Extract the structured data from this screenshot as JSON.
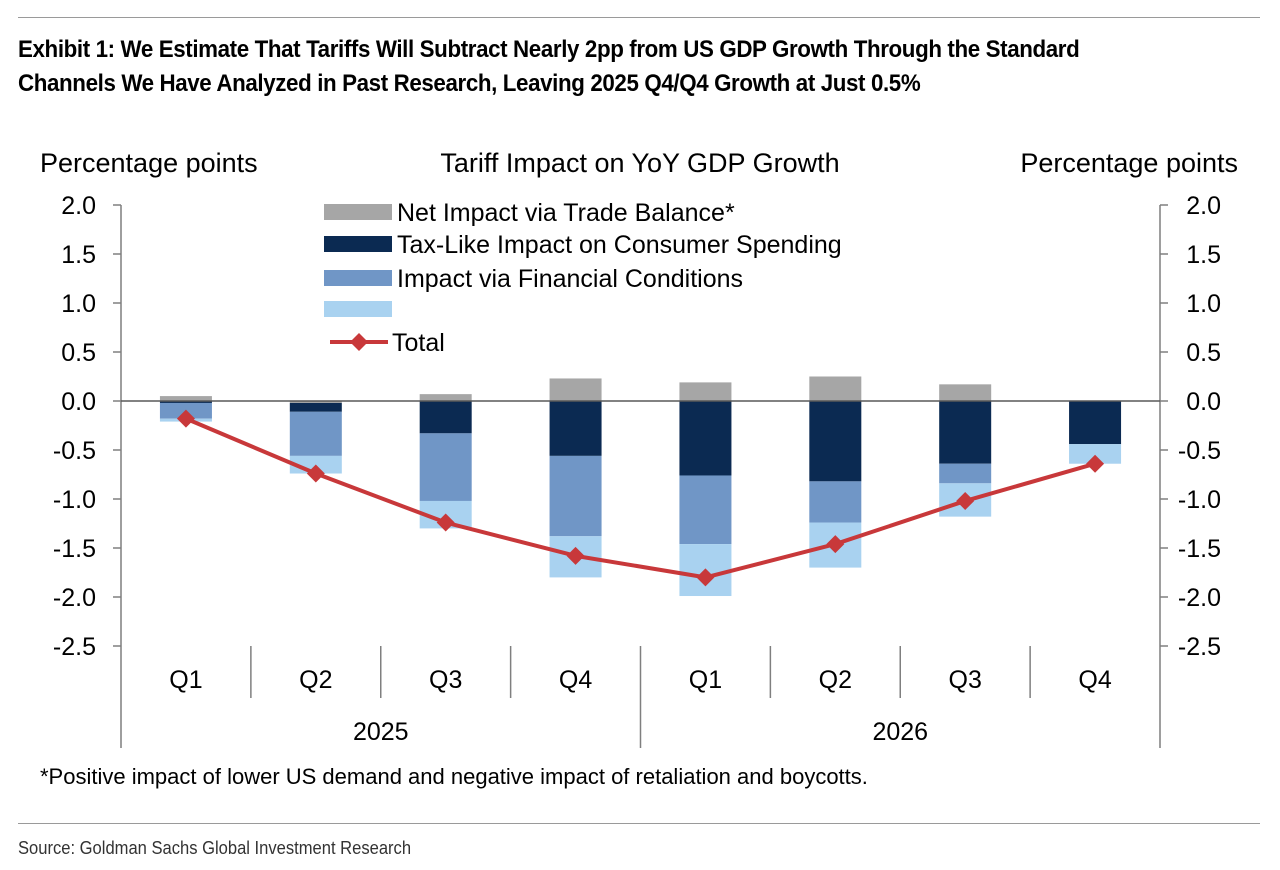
{
  "title": "Exhibit 1: We Estimate That Tariffs Will Subtract Nearly 2pp from US GDP Growth Through the Standard Channels We Have Analyzed in Past Research, Leaving 2025 Q4/Q4 Growth at Just 0.5%",
  "title_lines": [
    "Exhibit 1: We Estimate That Tariffs Will Subtract Nearly 2pp from US GDP Growth Through the Standard",
    "Channels We Have Analyzed in Past Research, Leaving 2025 Q4/Q4 Growth at Just 0.5%"
  ],
  "source": "Source: Goldman Sachs Global Investment Research",
  "chart_data": {
    "type": "bar",
    "stacked": true,
    "title": "Tariff Impact on YoY GDP Growth",
    "ylabel_left": "Percentage points",
    "ylabel_right": "Percentage points",
    "ylim": [
      -2.5,
      2.0
    ],
    "yticks": [
      "2.0",
      "1.5",
      "1.0",
      "0.5",
      "0.0",
      "-0.5",
      "-1.0",
      "-1.5",
      "-2.0",
      "-2.5"
    ],
    "categories": [
      "Q1",
      "Q2",
      "Q3",
      "Q4",
      "Q1",
      "Q2",
      "Q3",
      "Q4"
    ],
    "year_groups": [
      {
        "label": "2025",
        "quarters": 4
      },
      {
        "label": "2026",
        "quarters": 4
      }
    ],
    "series": [
      {
        "name": "Net Impact via Trade Balance*",
        "color": "#a6a6a6",
        "values": [
          0.05,
          -0.02,
          0.07,
          0.23,
          0.19,
          0.25,
          0.17,
          0.0
        ]
      },
      {
        "name": "Tax-Like Impact on Consumer Spending",
        "color": "#0b2a52",
        "values": [
          -0.02,
          -0.09,
          -0.33,
          -0.56,
          -0.76,
          -0.82,
          -0.64,
          -0.44
        ]
      },
      {
        "name": "Impact via Financial Conditions",
        "color": "#7096c6",
        "values": [
          -0.16,
          -0.45,
          -0.69,
          -0.82,
          -0.7,
          -0.42,
          -0.2,
          0.0
        ]
      },
      {
        "name": "",
        "color": "#a9d2f0",
        "values": [
          -0.03,
          -0.18,
          -0.28,
          -0.42,
          -0.53,
          -0.46,
          -0.34,
          -0.2
        ]
      }
    ],
    "total": {
      "name": "Total",
      "color": "#c8383a",
      "values": [
        -0.18,
        -0.74,
        -1.24,
        -1.58,
        -1.8,
        -1.46,
        -1.02,
        -0.64
      ]
    },
    "footnote": "*Positive impact of lower US demand and negative impact of retaliation and boycotts."
  }
}
